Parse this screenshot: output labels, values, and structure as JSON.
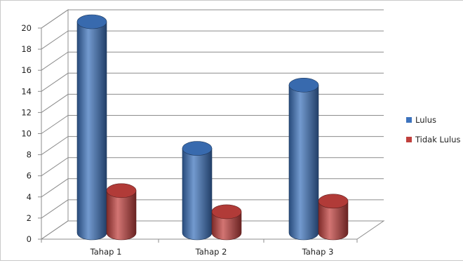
{
  "chart_data": {
    "type": "bar",
    "style": "3d-cylinder",
    "categories": [
      "Tahap 1",
      "Tahap 2",
      "Tahap 3"
    ],
    "series": [
      {
        "name": "Lulus",
        "values": [
          20,
          8,
          14
        ],
        "color": "#3d73bd"
      },
      {
        "name": "Tidak Lulus",
        "values": [
          4,
          2,
          3
        ],
        "color": "#c0403d"
      }
    ],
    "yticks": [
      "0",
      "2",
      "4",
      "6",
      "8",
      "10",
      "12",
      "14",
      "16",
      "18",
      "20"
    ],
    "ylim": [
      0,
      20
    ],
    "grid": true,
    "legend_position": "right"
  }
}
